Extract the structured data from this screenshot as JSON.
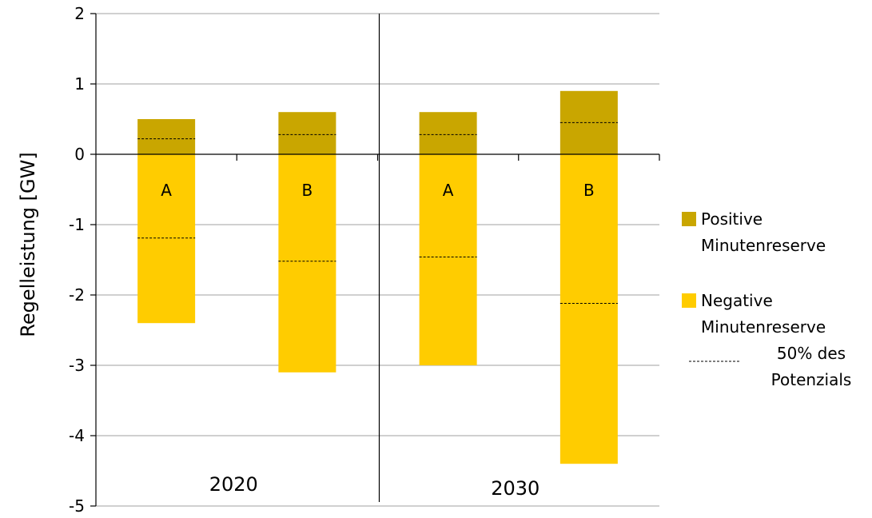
{
  "chart_data": {
    "type": "bar",
    "stacked": true,
    "ylabel": "Regelleistung [GW]",
    "ylim": [
      -5,
      2
    ],
    "yticks": [
      2,
      1,
      0,
      -1,
      -2,
      -3,
      -4,
      -5
    ],
    "grid": true,
    "legend_position": "right",
    "groups": [
      "2020",
      "2030"
    ],
    "categories": [
      "A",
      "B",
      "A",
      "B"
    ],
    "category_group": [
      "2020",
      "2020",
      "2030",
      "2030"
    ],
    "series": [
      {
        "name": "Positive Minutenreserve",
        "name_lines": [
          "Positive",
          "Minutenreserve"
        ],
        "color": "#c9a600",
        "values": [
          0.5,
          0.6,
          0.6,
          0.9
        ]
      },
      {
        "name": "Negative Minutenreserve",
        "name_lines": [
          "Negative",
          "Minutenreserve"
        ],
        "color": "#ffcc00",
        "values": [
          -2.4,
          -3.1,
          -3.0,
          -4.4
        ]
      }
    ],
    "markers": {
      "name": "50% des Potenzials",
      "name_lines": [
        "50% des",
        "Potenzials"
      ],
      "style": "dashed",
      "positive": [
        0.22,
        0.28,
        0.28,
        0.45
      ],
      "negative": [
        -1.19,
        -1.52,
        -1.46,
        -2.12
      ]
    }
  }
}
